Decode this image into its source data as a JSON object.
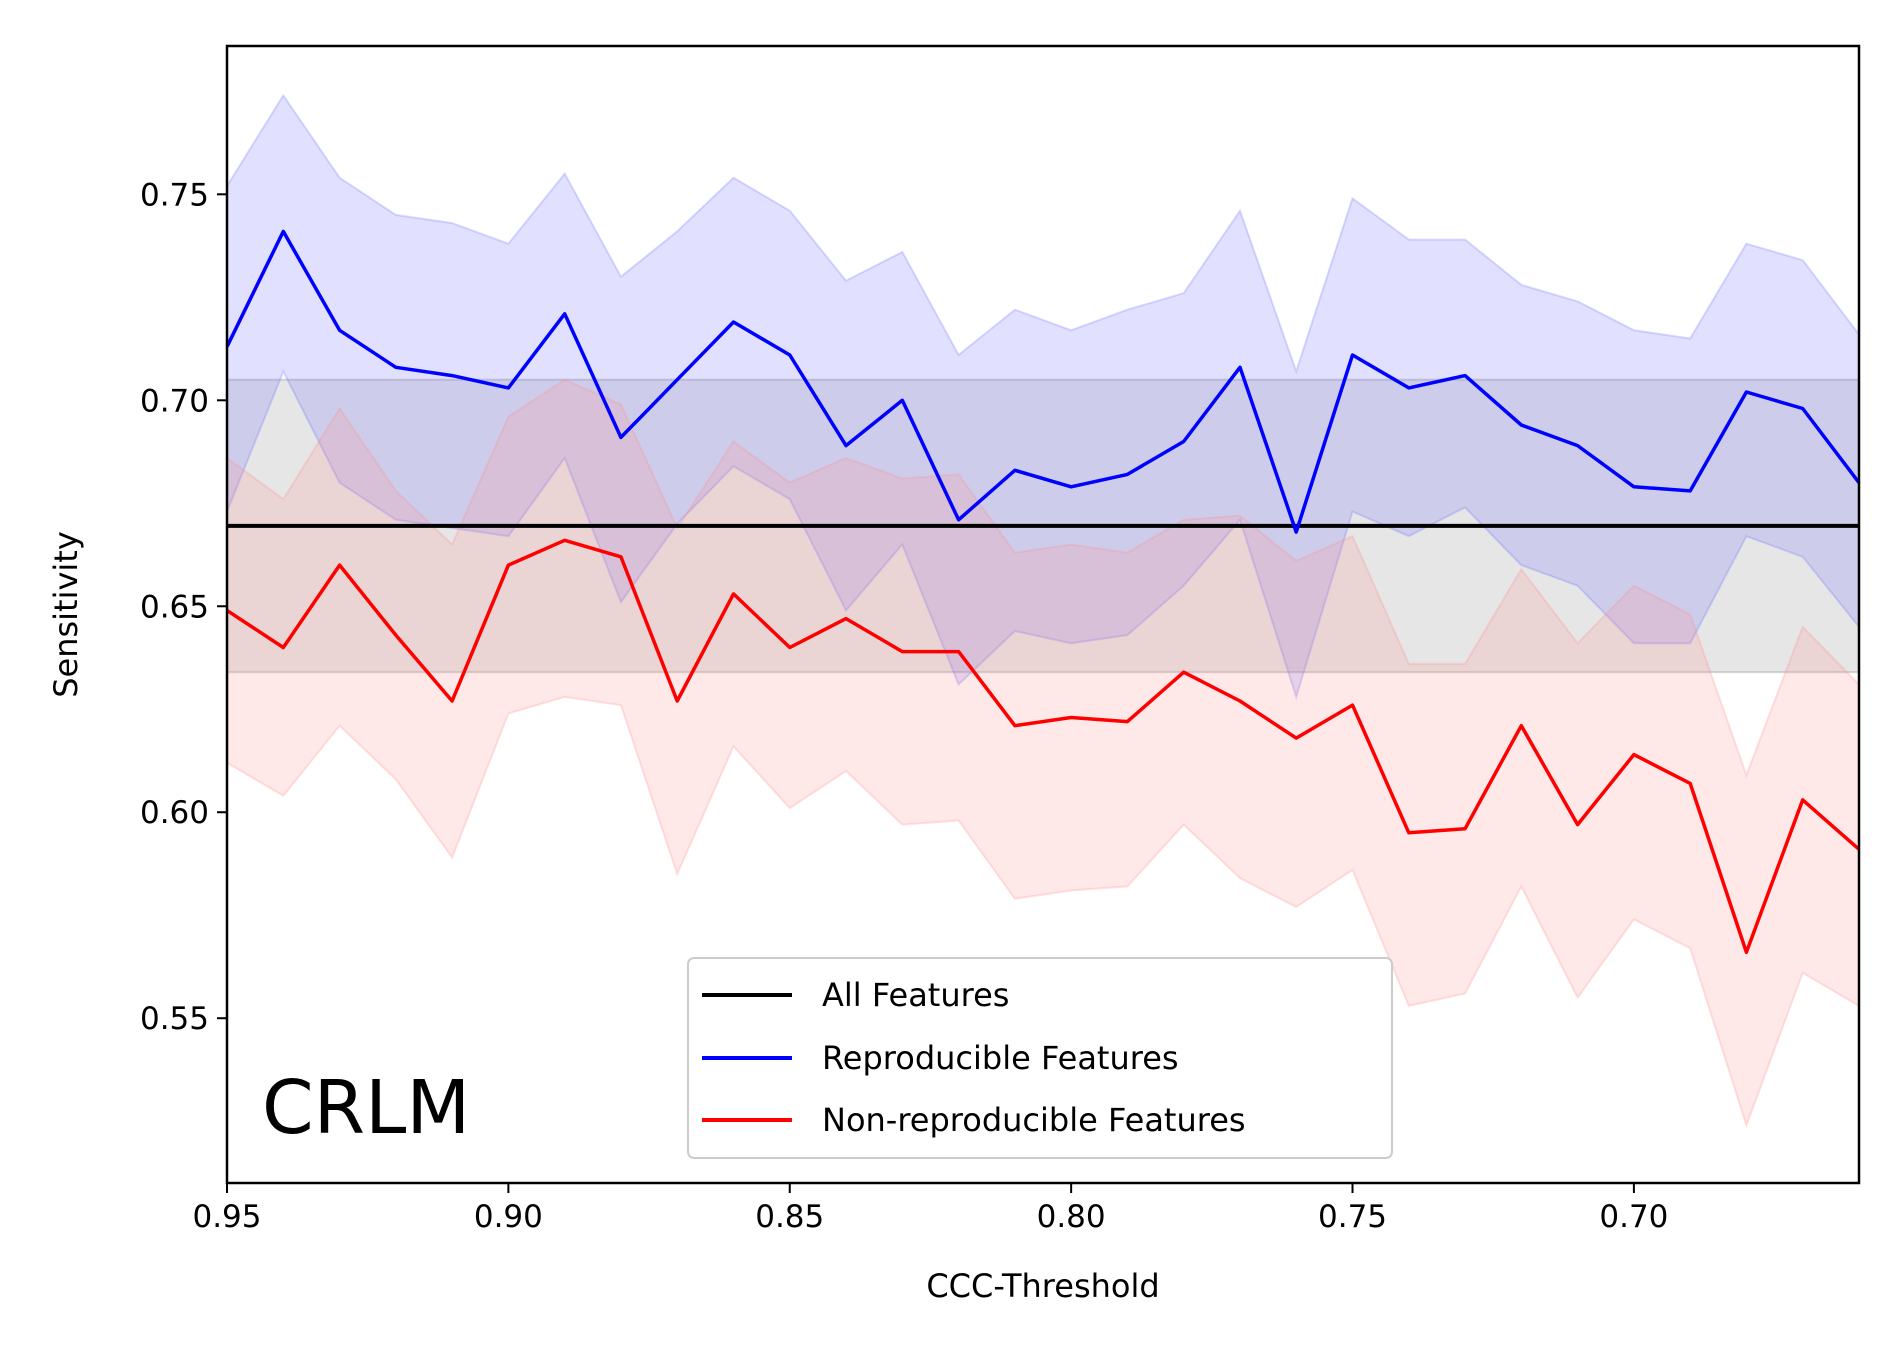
{
  "chart_data": {
    "type": "line",
    "xlabel": "CCC-Threshold",
    "ylabel": "Sensitivity",
    "x_inverted": true,
    "xlim": [
      0.95,
      0.66
    ],
    "ylim": [
      0.51,
      0.786
    ],
    "xticks": [
      "0.95",
      "0.90",
      "0.85",
      "0.80",
      "0.75",
      "0.70"
    ],
    "xtick_values": [
      0.95,
      0.9,
      0.85,
      0.8,
      0.75,
      0.7
    ],
    "yticks": [
      "0.55",
      "0.60",
      "0.65",
      "0.70",
      "0.75"
    ],
    "ytick_values": [
      0.55,
      0.6,
      0.65,
      0.7,
      0.75
    ],
    "annotation": "CRLM",
    "legend_position": "lower center",
    "x": [
      0.95,
      0.94,
      0.93,
      0.92,
      0.91,
      0.9,
      0.89,
      0.88,
      0.87,
      0.86,
      0.85,
      0.84,
      0.83,
      0.82,
      0.81,
      0.8,
      0.79,
      0.78,
      0.77,
      0.76,
      0.75,
      0.74,
      0.73,
      0.72,
      0.71,
      0.7,
      0.69,
      0.68,
      0.67,
      0.66
    ],
    "all_features": {
      "name": "All Features",
      "color": "#000000",
      "value": 0.6695,
      "band": [
        0.634,
        0.705
      ],
      "band_color": "#9a9a9a"
    },
    "series": [
      {
        "name": "Reproducible Features",
        "color": "#0000ff",
        "band_color": "#6a6aff",
        "values": [
          0.713,
          0.741,
          0.717,
          0.708,
          0.706,
          0.703,
          0.721,
          0.691,
          0.705,
          0.719,
          0.711,
          0.689,
          0.7,
          0.671,
          0.683,
          0.679,
          0.682,
          0.69,
          0.708,
          0.668,
          0.711,
          0.703,
          0.706,
          0.694,
          0.689,
          0.679,
          0.678,
          0.702,
          0.698,
          0.68
        ],
        "upper": [
          0.752,
          0.774,
          0.754,
          0.745,
          0.743,
          0.738,
          0.755,
          0.73,
          0.741,
          0.754,
          0.746,
          0.729,
          0.736,
          0.711,
          0.722,
          0.717,
          0.722,
          0.726,
          0.746,
          0.707,
          0.749,
          0.739,
          0.739,
          0.728,
          0.724,
          0.717,
          0.715,
          0.738,
          0.734,
          0.716
        ],
        "lower": [
          0.673,
          0.707,
          0.68,
          0.671,
          0.669,
          0.667,
          0.686,
          0.651,
          0.67,
          0.684,
          0.676,
          0.649,
          0.665,
          0.631,
          0.644,
          0.641,
          0.643,
          0.655,
          0.671,
          0.628,
          0.673,
          0.667,
          0.674,
          0.66,
          0.655,
          0.641,
          0.641,
          0.667,
          0.662,
          0.645
        ]
      },
      {
        "name": "Non-reproducible Features",
        "color": "#ff0000",
        "band_color": "#ff8a8a",
        "values": [
          0.649,
          0.64,
          0.66,
          0.643,
          0.627,
          0.66,
          0.666,
          0.662,
          0.627,
          0.653,
          0.64,
          0.647,
          0.639,
          0.639,
          0.621,
          0.623,
          0.622,
          0.634,
          0.627,
          0.618,
          0.626,
          0.595,
          0.596,
          0.621,
          0.597,
          0.614,
          0.607,
          0.566,
          0.603,
          0.591
        ],
        "upper": [
          0.686,
          0.676,
          0.698,
          0.678,
          0.665,
          0.696,
          0.705,
          0.699,
          0.669,
          0.69,
          0.68,
          0.686,
          0.681,
          0.682,
          0.663,
          0.665,
          0.663,
          0.671,
          0.672,
          0.661,
          0.667,
          0.636,
          0.636,
          0.659,
          0.641,
          0.655,
          0.648,
          0.609,
          0.645,
          0.631
        ],
        "lower": [
          0.612,
          0.604,
          0.621,
          0.608,
          0.589,
          0.624,
          0.628,
          0.626,
          0.585,
          0.616,
          0.601,
          0.61,
          0.597,
          0.598,
          0.579,
          0.581,
          0.582,
          0.597,
          0.584,
          0.577,
          0.586,
          0.553,
          0.556,
          0.582,
          0.555,
          0.574,
          0.567,
          0.524,
          0.561,
          0.553
        ]
      }
    ]
  }
}
